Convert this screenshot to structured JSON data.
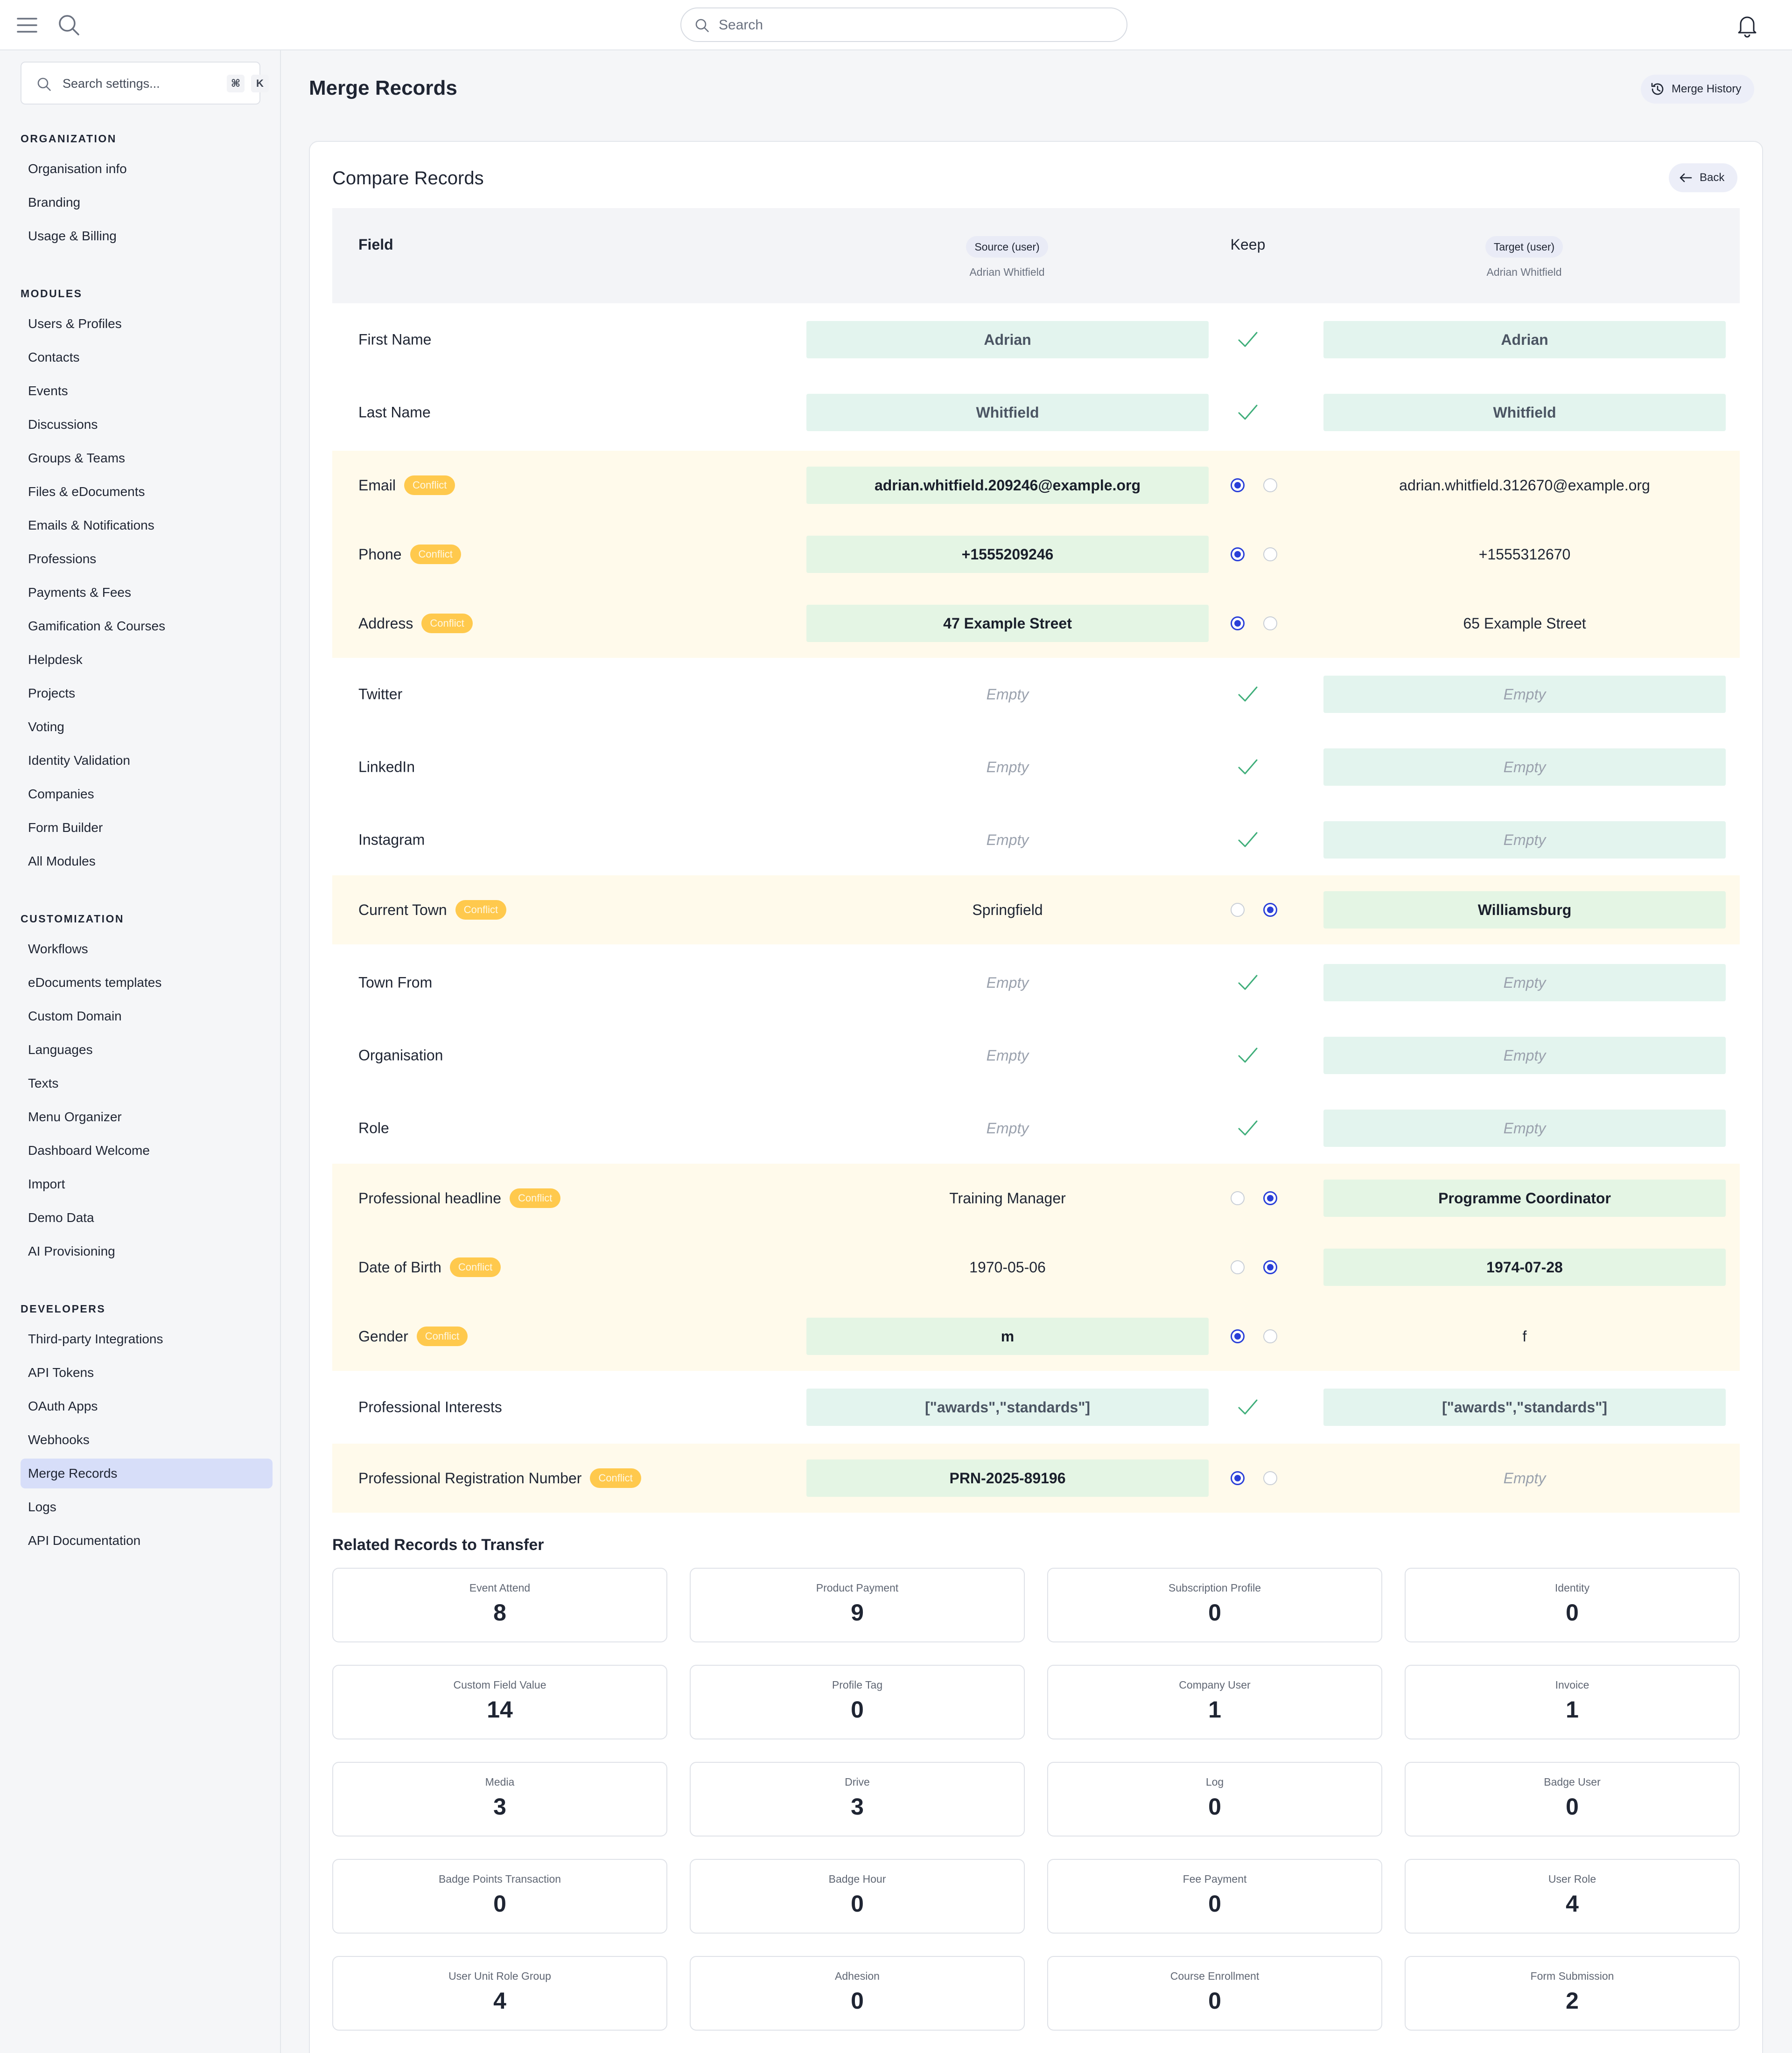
{
  "topbar": {
    "search_placeholder": "Search",
    "icons": [
      "menu-icon",
      "search-icon",
      "bell-icon"
    ]
  },
  "sidebar": {
    "search_placeholder": "Search settings...",
    "shortcut": [
      "⌘",
      "K"
    ],
    "sections": [
      {
        "title": "ORGANIZATION",
        "items": [
          "Organisation info",
          "Branding",
          "Usage & Billing"
        ]
      },
      {
        "title": "MODULES",
        "items": [
          "Users & Profiles",
          "Contacts",
          "Events",
          "Discussions",
          "Groups & Teams",
          "Files & eDocuments",
          "Emails & Notifications",
          "Professions",
          "Payments & Fees",
          "Gamification & Courses",
          "Helpdesk",
          "Projects",
          "Voting",
          "Identity Validation",
          "Companies",
          "Form Builder",
          "All Modules"
        ]
      },
      {
        "title": "CUSTOMIZATION",
        "items": [
          "Workflows",
          "eDocuments templates",
          "Custom Domain",
          "Languages",
          "Texts",
          "Menu Organizer",
          "Dashboard Welcome",
          "Import",
          "Demo Data",
          "AI Provisioning"
        ]
      },
      {
        "title": "DEVELOPERS",
        "items": [
          "Third-party Integrations",
          "API Tokens",
          "OAuth Apps",
          "Webhooks",
          "Merge Records",
          "Logs",
          "API Documentation"
        ]
      }
    ],
    "active_item": "Merge Records"
  },
  "main": {
    "title": "Merge Records",
    "history_button": "Merge History",
    "compare_title": "Compare Records",
    "back_button": "Back",
    "header": {
      "field": "Field",
      "keep": "Keep",
      "source_badge": "Source (user)",
      "source_name": "Adrian Whitfield",
      "target_badge": "Target (user)",
      "target_name": "Adrian Whitfield"
    },
    "conflict_label": "Conflict",
    "rows": [
      {
        "field": "First Name",
        "source": "Adrian",
        "target": "Adrian",
        "status": "same",
        "keep": "both"
      },
      {
        "field": "Last Name",
        "source": "Whitfield",
        "target": "Whitfield",
        "status": "same",
        "keep": "both"
      },
      {
        "field": "Email",
        "source": "adrian.whitfield.209246@example.org",
        "target": "adrian.whitfield.312670@example.org",
        "status": "conflict",
        "keep": "source"
      },
      {
        "field": "Phone",
        "source": "+1555209246",
        "target": "+1555312670",
        "status": "conflict",
        "keep": "source"
      },
      {
        "field": "Address",
        "source": "47 Example Street",
        "target": "65 Example Street",
        "status": "conflict",
        "keep": "source"
      },
      {
        "field": "Twitter",
        "source": "Empty",
        "target": "Empty",
        "status": "same-empty",
        "keep": "both"
      },
      {
        "field": "LinkedIn",
        "source": "Empty",
        "target": "Empty",
        "status": "same-empty",
        "keep": "both"
      },
      {
        "field": "Instagram",
        "source": "Empty",
        "target": "Empty",
        "status": "same-empty",
        "keep": "both"
      },
      {
        "field": "Current Town",
        "source": "Springfield",
        "target": "Williamsburg",
        "status": "conflict",
        "keep": "target"
      },
      {
        "field": "Town From",
        "source": "Empty",
        "target": "Empty",
        "status": "same-empty",
        "keep": "both"
      },
      {
        "field": "Organisation",
        "source": "Empty",
        "target": "Empty",
        "status": "same-empty",
        "keep": "both"
      },
      {
        "field": "Role",
        "source": "Empty",
        "target": "Empty",
        "status": "same-empty",
        "keep": "both"
      },
      {
        "field": "Professional headline",
        "source": "Training Manager",
        "target": "Programme Coordinator",
        "status": "conflict",
        "keep": "target"
      },
      {
        "field": "Date of Birth",
        "source": "1970-05-06",
        "target": "1974-07-28",
        "status": "conflict",
        "keep": "target"
      },
      {
        "field": "Gender",
        "source": "m",
        "target": "f",
        "status": "conflict",
        "keep": "source"
      },
      {
        "field": "Professional Interests",
        "source": "[\"awards\",\"standards\"]",
        "target": "[\"awards\",\"standards\"]",
        "status": "same",
        "keep": "both"
      },
      {
        "field": "Professional Registration Number",
        "source": "PRN-2025-89196",
        "target": "Empty",
        "status": "conflict",
        "keep": "source"
      }
    ],
    "related_title": "Related Records to Transfer",
    "related": [
      {
        "label": "Event Attend",
        "value": "8"
      },
      {
        "label": "Product Payment",
        "value": "9"
      },
      {
        "label": "Subscription Profile",
        "value": "0"
      },
      {
        "label": "Identity",
        "value": "0"
      },
      {
        "label": "Custom Field Value",
        "value": "14"
      },
      {
        "label": "Profile Tag",
        "value": "0"
      },
      {
        "label": "Company User",
        "value": "1"
      },
      {
        "label": "Invoice",
        "value": "1"
      },
      {
        "label": "Media",
        "value": "3"
      },
      {
        "label": "Drive",
        "value": "3"
      },
      {
        "label": "Log",
        "value": "0"
      },
      {
        "label": "Badge User",
        "value": "0"
      },
      {
        "label": "Badge Points Transaction",
        "value": "0"
      },
      {
        "label": "Badge Hour",
        "value": "0"
      },
      {
        "label": "Fee Payment",
        "value": "0"
      },
      {
        "label": "User Role",
        "value": "4"
      },
      {
        "label": "User Unit Role Group",
        "value": "4"
      },
      {
        "label": "Adhesion",
        "value": "0"
      },
      {
        "label": "Course Enrollment",
        "value": "0"
      },
      {
        "label": "Form Submission",
        "value": "2"
      }
    ],
    "colors": {
      "accent": "#2a3fd8",
      "check": "#3fae7a",
      "conflict_badge": "#ffc94d",
      "conflict_row": "#fffaeb",
      "active_nav": "#d7def9"
    }
  }
}
